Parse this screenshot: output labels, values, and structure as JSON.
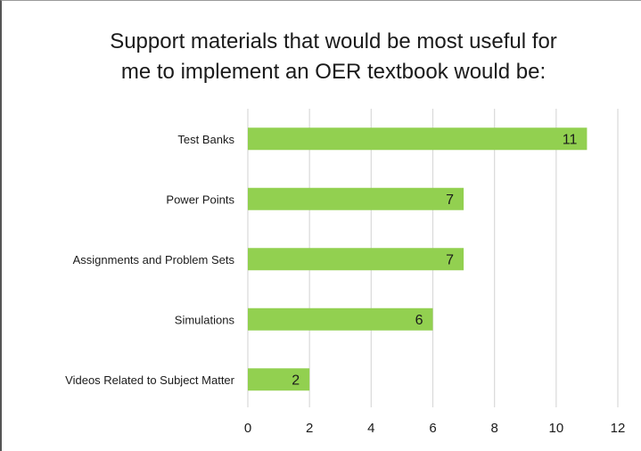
{
  "chart_data": {
    "type": "bar",
    "orientation": "horizontal",
    "title_lines": [
      "Support materials that would be most useful for",
      "me to implement an OER textbook would be:"
    ],
    "categories": [
      "Test Banks",
      "Power Points",
      "Assignments and Problem Sets",
      "Simulations",
      "Videos Related to Subject Matter"
    ],
    "values": [
      11,
      7,
      7,
      6,
      2
    ],
    "xlim": [
      0,
      12
    ],
    "xticks": [
      "0",
      "2",
      "4",
      "6",
      "8",
      "10",
      "12"
    ],
    "grid": true,
    "data_labels": true,
    "colors": {
      "bar": "#92d050",
      "grid": "#d9d9d9",
      "text": "#1a1a1a"
    }
  }
}
